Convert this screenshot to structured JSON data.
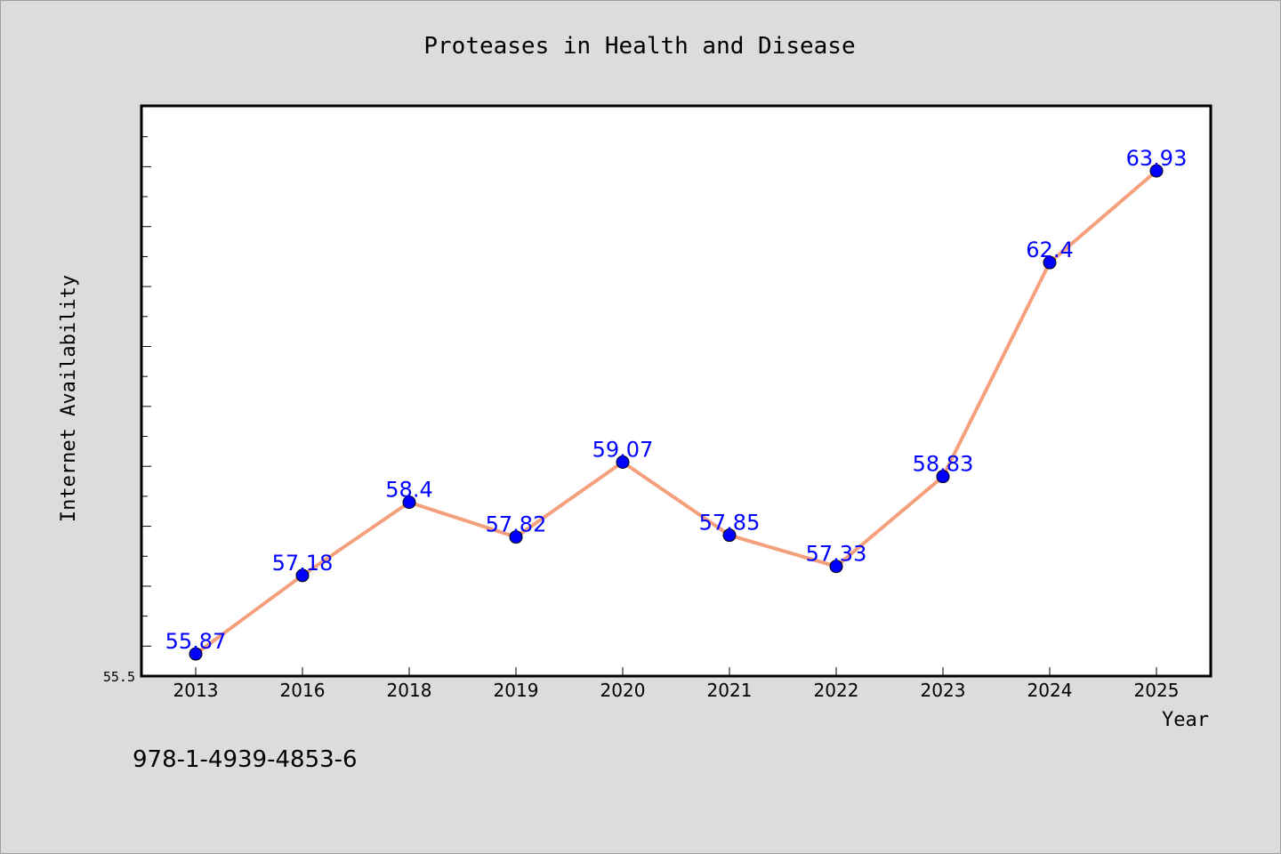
{
  "chart_data": {
    "type": "line",
    "title": "Proteases in Health and Disease",
    "xlabel": "Year",
    "ylabel": "Internet Availability",
    "categories": [
      "2013",
      "2016",
      "2018",
      "2019",
      "2020",
      "2021",
      "2022",
      "2023",
      "2024",
      "2025"
    ],
    "series": [
      {
        "values": [
          55.87,
          57.18,
          58.4,
          57.82,
          59.07,
          57.85,
          57.33,
          58.83,
          62.4,
          63.93
        ],
        "labels": [
          "55.87",
          "57.18",
          "58.4",
          "57.82",
          "59.07",
          "57.85",
          "57.33",
          "58.83",
          "62.4",
          "63.93"
        ],
        "line_color": "#f4a07c",
        "marker_color": "#0000ff"
      }
    ],
    "ylim": [
      55.5,
      65.0
    ],
    "y_tick_label": "55.5",
    "grid": false,
    "legend": "none"
  },
  "footer": {
    "isbn": "978-1-4939-4853-6"
  },
  "colors": {
    "background": "#dcdcdc",
    "plot_area": "#ffffff",
    "line": "#f4a07c",
    "marker": "#0000ff",
    "data_label": "#0000ff"
  }
}
